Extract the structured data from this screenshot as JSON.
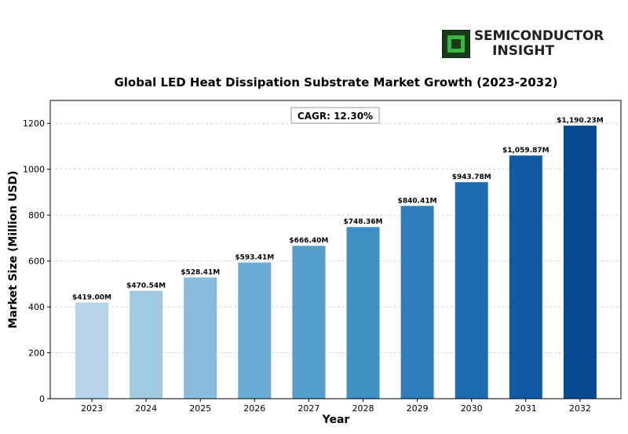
{
  "brand": {
    "line1": "SEMICONDUCTOR",
    "line2": "INSIGHT",
    "icon": "chip-icon"
  },
  "chart_data": {
    "type": "bar",
    "title": "Global LED Heat Dissipation Substrate Market Growth (2023-2032)",
    "xlabel": "Year",
    "ylabel": "Market Size (Million USD)",
    "annotation": "CAGR: 12.30%",
    "categories": [
      "2023",
      "2024",
      "2025",
      "2026",
      "2027",
      "2028",
      "2029",
      "2030",
      "2031",
      "2032"
    ],
    "values": [
      419.0,
      470.54,
      528.41,
      593.41,
      666.4,
      748.36,
      840.41,
      943.78,
      1059.87,
      1190.23
    ],
    "value_labels": [
      "$419.00M",
      "$470.54M",
      "$528.41M",
      "$593.41M",
      "$666.40M",
      "$748.36M",
      "$840.41M",
      "$943.78M",
      "$1,059.87M",
      "$1,190.23M"
    ],
    "yticks": [
      0,
      200,
      400,
      600,
      800,
      1000,
      1200
    ],
    "ylim": [
      0,
      1300
    ],
    "grid": true,
    "bar_colors": [
      "#b7d4ea",
      "#a0c9e2",
      "#87bcdc",
      "#6aacd6",
      "#559fcd",
      "#3f8fc5",
      "#2e7ebc",
      "#1e6db2",
      "#1159a3",
      "#084a91"
    ]
  }
}
